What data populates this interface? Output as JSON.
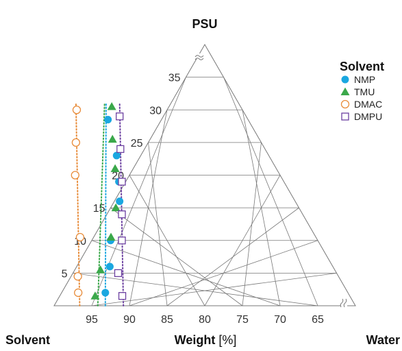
{
  "chart_data": {
    "type": "scatter",
    "subtype": "ternary",
    "vertices": {
      "top": "PSU",
      "left": "Solvent",
      "right": "Water"
    },
    "axis_title": {
      "bold": "Weight",
      "unit": " [%]"
    },
    "psu_ticks": [
      "5",
      "10",
      "15",
      "20",
      "25",
      "30",
      "35"
    ],
    "solvent_ticks": [
      "95",
      "90",
      "85",
      "80",
      "75",
      "70",
      "65"
    ],
    "axis_range": {
      "psu": [
        0,
        40
      ],
      "solvent": [
        60,
        100
      ]
    },
    "axis_breaks": true,
    "grid": true,
    "legend": {
      "title": "Solvent",
      "position": "top-right"
    },
    "series": [
      {
        "name": "NMP",
        "marker": "circle-filled",
        "color": "#1aa7e0",
        "points": [
          {
            "psu": 2,
            "solvent": 92.2
          },
          {
            "psu": 6,
            "solvent": 89.6
          },
          {
            "psu": 10,
            "solvent": 87.5
          },
          {
            "psu": 16,
            "solvent": 83.3
          },
          {
            "psu": 19,
            "solvent": 81.9
          },
          {
            "psu": 23,
            "solvent": 80.2
          },
          {
            "psu": 28.5,
            "solvent": 78.6
          }
        ]
      },
      {
        "name": "TMU",
        "marker": "triangle-filled",
        "color": "#3aa84a",
        "points": [
          {
            "psu": 1.5,
            "solvent": 93.8
          },
          {
            "psu": 5.5,
            "solvent": 91.1
          },
          {
            "psu": 10.5,
            "solvent": 87.2
          },
          {
            "psu": 15,
            "solvent": 84.3
          },
          {
            "psu": 21,
            "solvent": 81.4
          },
          {
            "psu": 25.5,
            "solvent": 79.5
          },
          {
            "psu": 30.5,
            "solvent": 77.1
          }
        ]
      },
      {
        "name": "DMAC",
        "marker": "circle-open",
        "color": "#e88c3a",
        "points": [
          {
            "psu": 2,
            "solvent": 95.8
          },
          {
            "psu": 4.5,
            "solvent": 94.6
          },
          {
            "psu": 10.5,
            "solvent": 91.3
          },
          {
            "psu": 20,
            "solvent": 87.2
          },
          {
            "psu": 25,
            "solvent": 84.6
          },
          {
            "psu": 30,
            "solvent": 82.0
          }
        ]
      },
      {
        "name": "DMPU",
        "marker": "square-open",
        "color": "#6b3fa0",
        "points": [
          {
            "psu": 1.5,
            "solvent": 90.2
          },
          {
            "psu": 5,
            "solvent": 89.0
          },
          {
            "psu": 10,
            "solvent": 86.0
          },
          {
            "psu": 14,
            "solvent": 84.0
          },
          {
            "psu": 19,
            "solvent": 81.5
          },
          {
            "psu": 24,
            "solvent": 79.2
          },
          {
            "psu": 29,
            "solvent": 76.8
          }
        ]
      }
    ],
    "fit_lines": [
      {
        "series": "NMP",
        "style": "dotted",
        "from": {
          "psu": 0,
          "solvent": 93.2
        },
        "to": {
          "psu": 31,
          "solvent": 77.6
        }
      },
      {
        "series": "TMU",
        "style": "dotted",
        "from": {
          "psu": 0,
          "solvent": 94.2
        },
        "to": {
          "psu": 31,
          "solvent": 77.8
        }
      },
      {
        "series": "DMAC",
        "style": "dotted",
        "from": {
          "psu": 0,
          "solvent": 96.6
        },
        "to": {
          "psu": 31,
          "solvent": 81.6
        }
      },
      {
        "series": "DMPU",
        "style": "dotted",
        "from": {
          "psu": 0,
          "solvent": 90.8
        },
        "to": {
          "psu": 31,
          "solvent": 75.8
        }
      }
    ]
  }
}
